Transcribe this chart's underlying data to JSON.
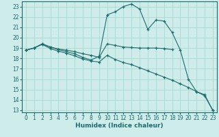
{
  "xlabel": "Humidex (Indice chaleur)",
  "ylabel": "",
  "bg_color": "#ceecea",
  "grid_color": "#a8d8d0",
  "line_color": "#1a6b6b",
  "xlim": [
    -0.5,
    23.5
  ],
  "ylim": [
    12.8,
    23.5
  ],
  "yticks": [
    13,
    14,
    15,
    16,
    17,
    18,
    19,
    20,
    21,
    22,
    23
  ],
  "xticks": [
    0,
    1,
    2,
    3,
    4,
    5,
    6,
    7,
    8,
    9,
    10,
    11,
    12,
    13,
    14,
    15,
    16,
    17,
    18,
    19,
    20,
    21,
    22,
    23
  ],
  "curve_flat_x": [
    0,
    1,
    2,
    3,
    4,
    5,
    6,
    7,
    8,
    9,
    10,
    11,
    12,
    13,
    14,
    15,
    16,
    17,
    18
  ],
  "curve_flat_y": [
    18.8,
    19.0,
    19.4,
    19.1,
    18.9,
    18.8,
    18.65,
    18.45,
    18.3,
    18.1,
    19.4,
    19.25,
    19.1,
    19.05,
    19.0,
    19.0,
    19.0,
    18.95,
    18.85
  ],
  "curve_high_x": [
    0,
    1,
    2,
    3,
    4,
    5,
    6,
    7,
    8,
    9,
    10,
    11,
    12,
    13,
    14,
    15,
    16,
    17,
    18,
    19,
    20,
    21,
    22,
    23
  ],
  "curve_high_y": [
    18.8,
    19.0,
    19.4,
    19.1,
    18.85,
    18.65,
    18.45,
    18.1,
    17.85,
    18.2,
    22.2,
    22.5,
    23.0,
    23.25,
    22.75,
    20.8,
    21.7,
    21.6,
    20.5,
    18.8,
    16.0,
    14.8,
    14.5,
    13.0
  ],
  "curve_low_x": [
    0,
    1,
    2,
    3,
    4,
    5,
    6,
    7,
    8,
    9,
    10,
    11,
    12,
    13,
    14,
    15,
    16,
    17,
    18,
    19,
    20,
    21,
    22,
    23
  ],
  "curve_low_y": [
    18.8,
    19.0,
    19.35,
    18.95,
    18.7,
    18.5,
    18.25,
    17.95,
    17.75,
    17.65,
    18.3,
    17.9,
    17.6,
    17.4,
    17.1,
    16.8,
    16.5,
    16.2,
    15.9,
    15.55,
    15.2,
    14.8,
    14.4,
    13.0
  ]
}
